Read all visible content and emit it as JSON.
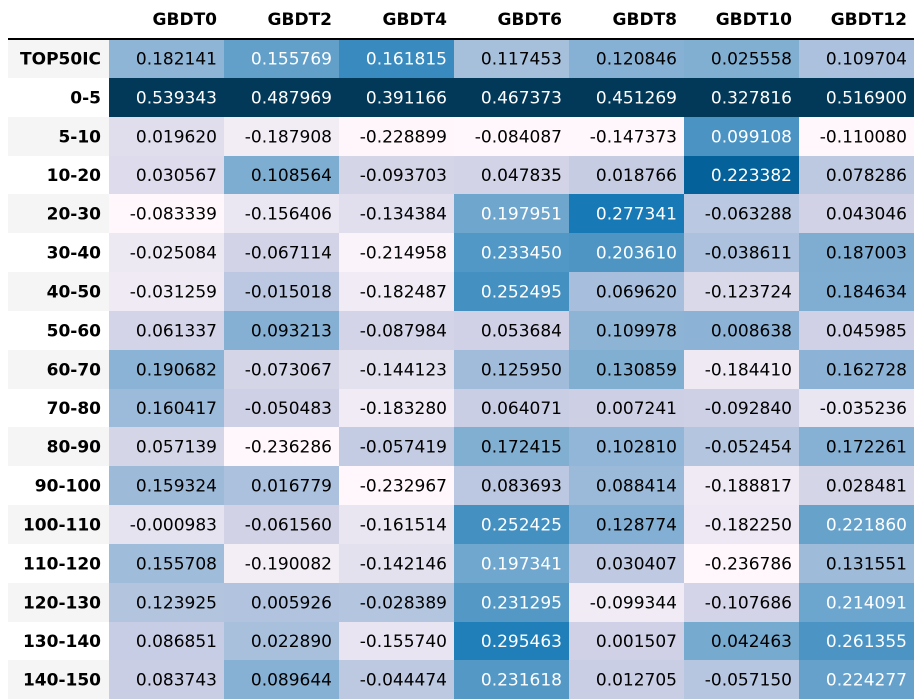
{
  "chart_data": {
    "type": "heatmap",
    "columns": [
      "GBDT0",
      "GBDT2",
      "GBDT4",
      "GBDT6",
      "GBDT8",
      "GBDT10",
      "GBDT12"
    ],
    "rows": [
      "TOP50IC",
      "0-5",
      "5-10",
      "10-20",
      "20-30",
      "30-40",
      "40-50",
      "50-60",
      "60-70",
      "70-80",
      "80-90",
      "90-100",
      "100-110",
      "110-120",
      "120-130",
      "130-140",
      "140-150"
    ],
    "values": [
      [
        "0.182141",
        "0.155769",
        "0.161815",
        "0.117453",
        "0.120846",
        "0.025558",
        "0.109704"
      ],
      [
        "0.539343",
        "0.487969",
        "0.391166",
        "0.467373",
        "0.451269",
        "0.327816",
        "0.516900"
      ],
      [
        "0.019620",
        "-0.187908",
        "-0.228899",
        "-0.084087",
        "-0.147373",
        "0.099108",
        "-0.110080"
      ],
      [
        "0.030567",
        "0.108564",
        "-0.093703",
        "0.047835",
        "0.018766",
        "0.223382",
        "0.078286"
      ],
      [
        "-0.083339",
        "-0.156406",
        "-0.134384",
        "0.197951",
        "0.277341",
        "-0.063288",
        "0.043046"
      ],
      [
        "-0.025084",
        "-0.067114",
        "-0.214958",
        "0.233450",
        "0.203610",
        "-0.038611",
        "0.187003"
      ],
      [
        "-0.031259",
        "-0.015018",
        "-0.182487",
        "0.252495",
        "0.069620",
        "-0.123724",
        "0.184634"
      ],
      [
        "0.061337",
        "0.093213",
        "-0.087984",
        "0.053684",
        "0.109978",
        "0.008638",
        "0.045985"
      ],
      [
        "0.190682",
        "-0.073067",
        "-0.144123",
        "0.125950",
        "0.130859",
        "-0.184410",
        "0.162728"
      ],
      [
        "0.160417",
        "-0.050483",
        "-0.183280",
        "0.064071",
        "0.007241",
        "-0.092840",
        "-0.035236"
      ],
      [
        "0.057139",
        "-0.236286",
        "-0.057419",
        "0.172415",
        "0.102810",
        "-0.052454",
        "0.172261"
      ],
      [
        "0.159324",
        "0.016779",
        "-0.232967",
        "0.083693",
        "0.088414",
        "-0.188817",
        "0.028481"
      ],
      [
        "-0.000983",
        "-0.061560",
        "-0.161514",
        "0.252425",
        "0.128774",
        "-0.182250",
        "0.221860"
      ],
      [
        "0.155708",
        "-0.190082",
        "-0.142146",
        "0.197341",
        "0.030407",
        "-0.236786",
        "0.131551"
      ],
      [
        "0.123925",
        "0.005926",
        "-0.028389",
        "0.231295",
        "-0.099344",
        "-0.107686",
        "0.214091"
      ],
      [
        "0.086851",
        "0.022890",
        "-0.155740",
        "0.295463",
        "0.001507",
        "0.042463",
        "0.261355"
      ],
      [
        "0.083743",
        "0.089644",
        "-0.044474",
        "0.231618",
        "0.012705",
        "-0.057150",
        "0.224277"
      ]
    ],
    "color_scale": "per-column, light-to-dark blue (PuBu)",
    "colors": {
      "low": "#fff7fb",
      "mid1": "#d0d1e6",
      "mid2": "#74a9cf",
      "mid3": "#0570b0",
      "high": "#023858",
      "row_band": "#f5f5f5",
      "header_rule": "#000000",
      "text_dark": "#000000",
      "text_light": "#ffffff"
    },
    "xlabel": "",
    "ylabel": "",
    "grid": false,
    "legend": "none"
  }
}
